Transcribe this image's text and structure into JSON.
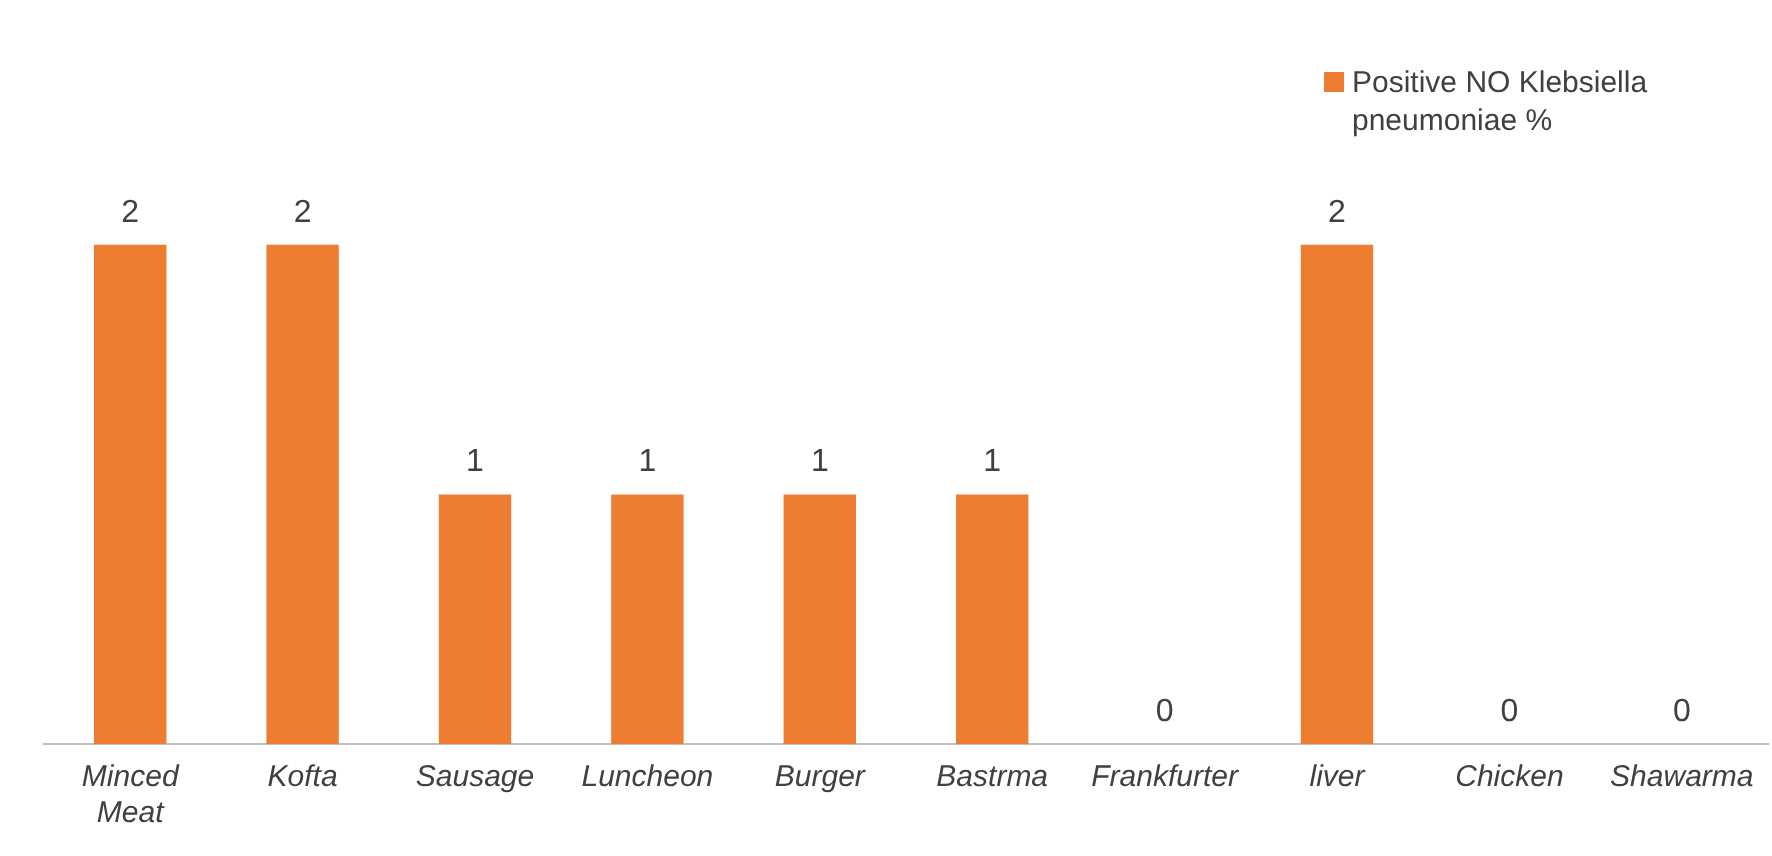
{
  "chart_data": {
    "type": "bar",
    "categories": [
      "Minced Meat",
      "Kofta",
      "Sausage",
      "Luncheon",
      "Burger",
      "Bastrma",
      "Frankfurter",
      "liver",
      "Chicken",
      "Shawarma"
    ],
    "series": [
      {
        "name": "Positive NO Klebsiella pneumoniae %",
        "color": "#ed7d31",
        "values": [
          2,
          2,
          1,
          1,
          1,
          1,
          0,
          2,
          0,
          0
        ]
      }
    ],
    "data_labels": true,
    "legend": "top right",
    "grid": false
  }
}
